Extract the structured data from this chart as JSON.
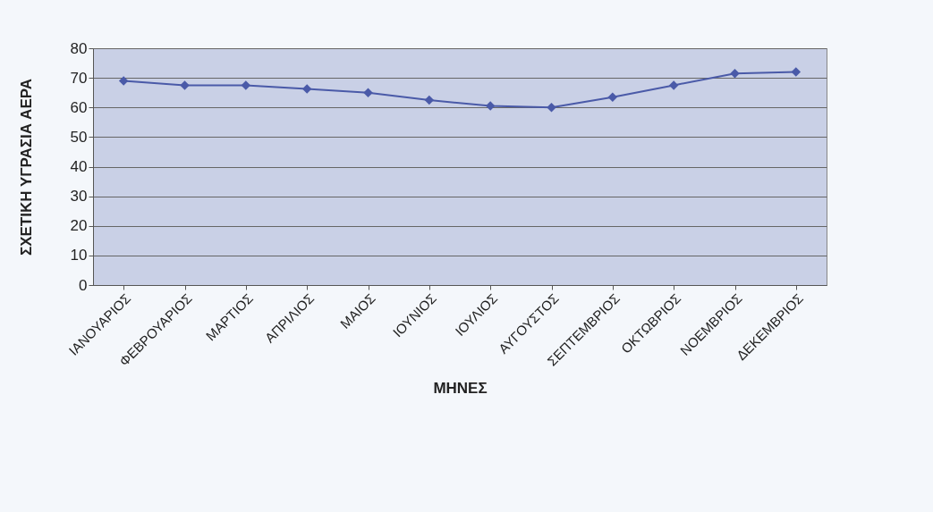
{
  "chart_data": {
    "type": "line",
    "xlabel": "ΜΗΝΕΣ",
    "ylabel": "ΣΧΕΤΙΚΗ ΥΓΡΑΣΙΑ ΑΕΡΑ",
    "categories": [
      "ΙΑΝΟΥΑΡΙΟΣ",
      "ΦΕΒΡΟΥΑΡΙΟΣ",
      "ΜΑΡΤΙΟΣ",
      "ΑΠΡΙΛΙΟΣ",
      "ΜΑΙΟΣ",
      "ΙΟΥΝΙΟΣ",
      "ΙΟΥΛΙΟΣ",
      "ΑΥΓΟΥΣΤΟΣ",
      "ΣΕΠΤΕΜΒΡΙΟΣ",
      "ΟΚΤΩΒΡΙΟΣ",
      "ΝΟΕΜΒΡΙΟΣ",
      "ΔΕΚΕΜΒΡΙΟΣ"
    ],
    "series": [
      {
        "color": "#4a5aa8",
        "values": [
          69,
          67.5,
          67.5,
          66.3,
          65,
          62.5,
          60.5,
          60,
          63.5,
          67.5,
          71.5,
          72
        ]
      }
    ],
    "ylim": [
      0,
      80
    ],
    "yticks": [
      0,
      10,
      20,
      30,
      40,
      50,
      60,
      70,
      80
    ],
    "grid": "y",
    "marker": "diamond",
    "line_style": "solid",
    "legend": false
  }
}
